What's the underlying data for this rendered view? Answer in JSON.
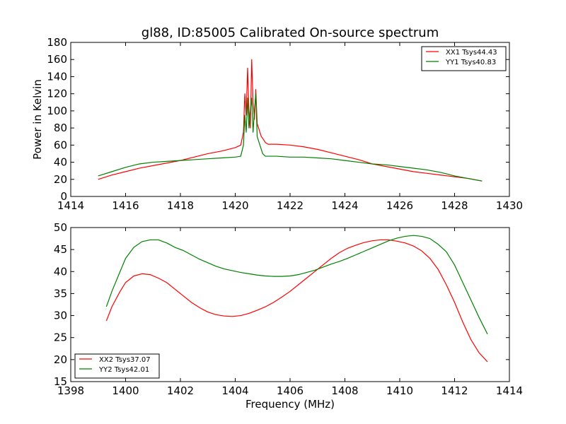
{
  "chart_data": [
    {
      "type": "line",
      "title": "gl88, ID:85005 Calibrated On-source spectrum",
      "xlabel": "",
      "ylabel": "Power in Kelvin",
      "xlim": [
        1414,
        1430
      ],
      "ylim": [
        0,
        180
      ],
      "xticks": [
        1414,
        1416,
        1418,
        1420,
        1422,
        1424,
        1426,
        1428,
        1430
      ],
      "yticks": [
        0,
        20,
        40,
        60,
        80,
        100,
        120,
        140,
        160,
        180
      ],
      "grid": false,
      "legend_position": "top-right",
      "series": [
        {
          "name": "XX1 Tsys44.43",
          "color": "#ff0000",
          "x": [
            1415.0,
            1415.5,
            1416.0,
            1416.5,
            1417.0,
            1417.5,
            1418.0,
            1418.5,
            1419.0,
            1419.5,
            1420.0,
            1420.2,
            1420.3,
            1420.35,
            1420.4,
            1420.45,
            1420.5,
            1420.55,
            1420.6,
            1420.65,
            1420.7,
            1420.75,
            1420.8,
            1420.85,
            1420.9,
            1420.95,
            1421.0,
            1421.1,
            1421.2,
            1421.5,
            1422.0,
            1422.5,
            1423.0,
            1423.5,
            1424.0,
            1424.5,
            1425.0,
            1425.5,
            1426.0,
            1426.5,
            1427.0,
            1427.5,
            1428.0,
            1428.5,
            1429.0
          ],
          "y": [
            20,
            25,
            29,
            33,
            36,
            39,
            42,
            46,
            50,
            53,
            57,
            60,
            75,
            120,
            95,
            150,
            100,
            80,
            160,
            110,
            90,
            125,
            85,
            80,
            75,
            70,
            68,
            63,
            61,
            61,
            60,
            58,
            55,
            51,
            47,
            43,
            38,
            35,
            32,
            29,
            27,
            25,
            23,
            21,
            18
          ]
        },
        {
          "name": "YY1 Tsys40.83",
          "color": "#008000",
          "x": [
            1415.0,
            1415.5,
            1416.0,
            1416.5,
            1417.0,
            1417.5,
            1418.0,
            1418.5,
            1419.0,
            1419.5,
            1420.0,
            1420.2,
            1420.3,
            1420.35,
            1420.4,
            1420.45,
            1420.5,
            1420.55,
            1420.6,
            1420.65,
            1420.7,
            1420.75,
            1420.8,
            1420.85,
            1420.9,
            1420.95,
            1421.0,
            1421.1,
            1421.2,
            1421.5,
            1422.0,
            1422.5,
            1423.0,
            1423.5,
            1424.0,
            1424.5,
            1425.0,
            1425.5,
            1426.0,
            1426.5,
            1427.0,
            1427.5,
            1428.0,
            1428.5,
            1429.0
          ],
          "y": [
            24,
            29,
            34,
            38,
            40,
            41,
            42,
            43,
            44,
            45,
            46,
            47,
            60,
            95,
            75,
            115,
            80,
            100,
            115,
            75,
            100,
            120,
            70,
            65,
            60,
            55,
            50,
            47,
            47,
            47,
            46,
            46,
            45,
            44,
            42,
            40,
            38,
            37,
            35,
            33,
            31,
            28,
            24,
            21,
            18
          ]
        }
      ]
    },
    {
      "type": "line",
      "title": "",
      "xlabel": "Frequency (MHz)",
      "ylabel": "",
      "xlim": [
        1398,
        1414
      ],
      "ylim": [
        15,
        50
      ],
      "xticks": [
        1398,
        1400,
        1402,
        1404,
        1406,
        1408,
        1410,
        1412,
        1414
      ],
      "yticks": [
        15,
        20,
        25,
        30,
        35,
        40,
        45,
        50
      ],
      "grid": false,
      "legend_position": "bottom-left",
      "series": [
        {
          "name": "XX2 Tsys37.07",
          "color": "#ff0000",
          "x": [
            1399.3,
            1399.5,
            1399.8,
            1400.0,
            1400.3,
            1400.6,
            1400.9,
            1401.2,
            1401.5,
            1401.8,
            1402.1,
            1402.4,
            1402.7,
            1403.0,
            1403.3,
            1403.6,
            1403.9,
            1404.2,
            1404.5,
            1404.8,
            1405.1,
            1405.4,
            1405.7,
            1406.0,
            1406.3,
            1406.6,
            1406.9,
            1407.2,
            1407.5,
            1407.8,
            1408.1,
            1408.4,
            1408.7,
            1409.0,
            1409.3,
            1409.6,
            1409.9,
            1410.2,
            1410.5,
            1410.8,
            1411.1,
            1411.4,
            1411.7,
            1412.0,
            1412.3,
            1412.6,
            1412.9,
            1413.2
          ],
          "y": [
            28.8,
            32.0,
            35.5,
            37.5,
            39.0,
            39.5,
            39.3,
            38.5,
            37.5,
            36.0,
            34.5,
            33.0,
            31.8,
            30.8,
            30.2,
            29.9,
            29.8,
            30.0,
            30.5,
            31.2,
            32.0,
            33.0,
            34.2,
            35.5,
            37.0,
            38.5,
            40.0,
            41.5,
            43.0,
            44.3,
            45.3,
            46.0,
            46.6,
            47.0,
            47.2,
            47.2,
            46.9,
            46.5,
            45.8,
            44.7,
            43.0,
            40.5,
            37.0,
            33.0,
            28.5,
            24.5,
            21.5,
            19.5
          ]
        },
        {
          "name": "YY2 Tsys42.01",
          "color": "#008000",
          "x": [
            1399.3,
            1399.5,
            1399.8,
            1400.0,
            1400.3,
            1400.6,
            1400.9,
            1401.2,
            1401.5,
            1401.8,
            1402.1,
            1402.4,
            1402.7,
            1403.0,
            1403.3,
            1403.6,
            1403.9,
            1404.2,
            1404.5,
            1404.8,
            1405.1,
            1405.4,
            1405.7,
            1406.0,
            1406.3,
            1406.6,
            1406.9,
            1407.2,
            1407.5,
            1407.8,
            1408.1,
            1408.4,
            1408.7,
            1409.0,
            1409.3,
            1409.6,
            1409.9,
            1410.2,
            1410.5,
            1410.8,
            1411.1,
            1411.4,
            1411.7,
            1412.0,
            1412.3,
            1412.6,
            1412.9,
            1413.2
          ],
          "y": [
            32.0,
            35.5,
            40.0,
            43.0,
            45.5,
            46.8,
            47.2,
            47.2,
            46.5,
            45.5,
            44.8,
            43.8,
            42.8,
            42.0,
            41.2,
            40.6,
            40.2,
            39.8,
            39.5,
            39.2,
            39.0,
            38.9,
            38.9,
            39.0,
            39.3,
            39.8,
            40.3,
            41.0,
            41.7,
            42.3,
            43.0,
            43.8,
            44.6,
            45.4,
            46.2,
            47.0,
            47.6,
            48.0,
            48.2,
            48.0,
            47.5,
            46.2,
            44.5,
            41.5,
            37.5,
            33.5,
            29.5,
            25.8
          ]
        }
      ]
    }
  ]
}
